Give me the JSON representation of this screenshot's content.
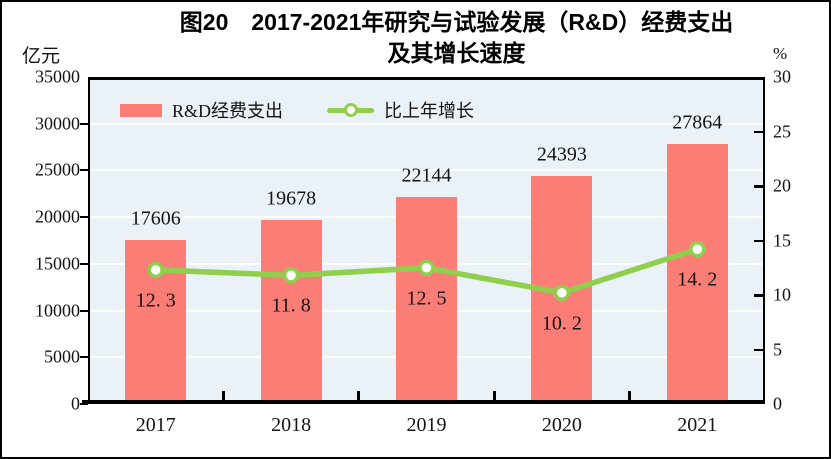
{
  "title": {
    "line1": "图20　2017-2021年研究与试验发展（R&D）经费支出",
    "line2": "及其增长速度"
  },
  "axes": {
    "left_unit": "亿元",
    "right_unit": "%",
    "left_ticks": [
      "35000",
      "30000",
      "25000",
      "20000",
      "15000",
      "10000",
      "5000",
      "0"
    ],
    "right_ticks": [
      "30",
      "25",
      "20",
      "15",
      "10",
      "5",
      "0"
    ],
    "x_ticks": [
      "2017",
      "2018",
      "2019",
      "2020",
      "2021"
    ]
  },
  "legend": [
    {
      "label": "R&D经费支出",
      "swatch": "bar",
      "color": "#FA7E76"
    },
    {
      "label": "比上年增长",
      "swatch": "line",
      "color": "#90CF4E"
    }
  ],
  "chart_data": {
    "type": "bar+line",
    "categories": [
      "2017",
      "2018",
      "2019",
      "2020",
      "2021"
    ],
    "series": [
      {
        "name": "R&D经费支出",
        "type": "bar",
        "axis": "left",
        "unit": "亿元",
        "values": [
          17606,
          19678,
          22144,
          24393,
          27864
        ],
        "labels": [
          "17606",
          "19678",
          "22144",
          "24393",
          "27864"
        ],
        "color": "#FA7E76"
      },
      {
        "name": "比上年增长",
        "type": "line",
        "axis": "right",
        "unit": "%",
        "values": [
          12.3,
          11.8,
          12.5,
          10.2,
          14.2
        ],
        "labels": [
          "12. 3",
          "11. 8",
          "12. 5",
          "10. 2",
          "14. 2"
        ],
        "color": "#90CF4E",
        "marker": "open-circle",
        "marker_fill": "#ffffff"
      }
    ],
    "left_axis": {
      "label": "亿元",
      "min": 0,
      "max": 35000,
      "step": 5000
    },
    "right_axis": {
      "label": "%",
      "min": 0,
      "max": 30,
      "step": 5
    },
    "grid": true,
    "gridline_color": "#fdfefe",
    "plot_bg": "#EAF1F7",
    "legend_position": "top-left-inside",
    "title": "图20 2017-2021年研究与试验发展（R&D）经费支出及其增长速度"
  }
}
